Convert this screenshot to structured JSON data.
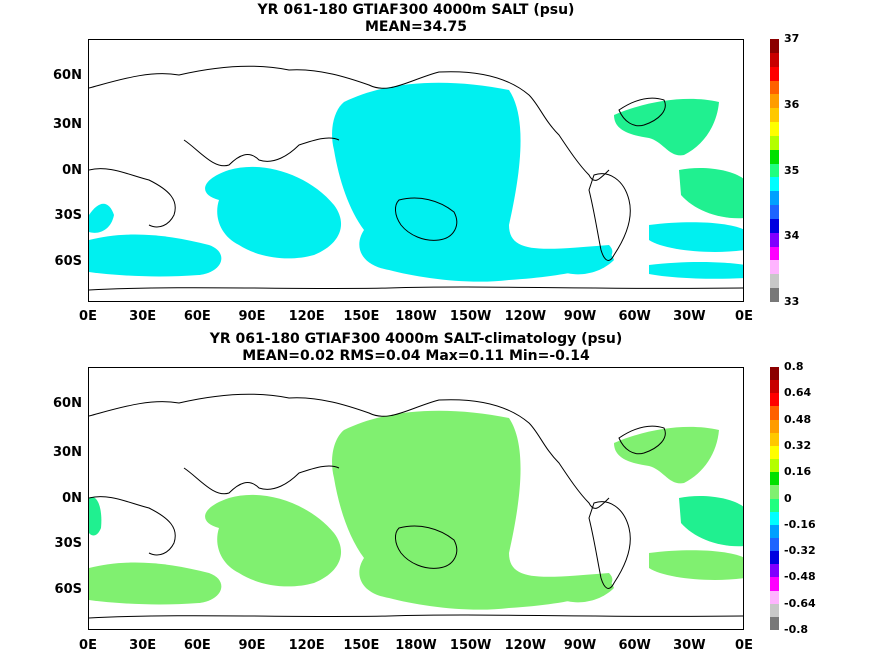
{
  "panel1": {
    "title_line1": "YR 061-180 GTIAF300 4000m SALT (psu)",
    "title_line2": "MEAN=34.75",
    "lat_labels": [
      "60N",
      "30N",
      "0N",
      "30S",
      "60S"
    ],
    "lon_labels": [
      "0E",
      "30E",
      "60E",
      "90E",
      "120E",
      "150E",
      "180W",
      "150W",
      "120W",
      "90W",
      "60W",
      "30W",
      "0E"
    ],
    "colorbar_labels": [
      "37",
      "36",
      "35",
      "34",
      "33"
    ],
    "colorbar_colors": [
      "#8b0000",
      "#c80000",
      "#ff0000",
      "#ff6000",
      "#ff9c00",
      "#ffc800",
      "#ffff00",
      "#b4ff00",
      "#00e000",
      "#20ff80",
      "#00ffff",
      "#00a0ff",
      "#1e64ff",
      "#0000e0",
      "#8000ff",
      "#ff00ff",
      "#ffb4ff",
      "#c8c8c8",
      "#787878"
    ],
    "fill_color": "#00f0f0",
    "alt_fill_color": "#20f090"
  },
  "panel2": {
    "title_line1": "YR 061-180 GTIAF300 4000m SALT-climatology (psu)",
    "title_line2": "MEAN=0.02   RMS=0.04   Max=0.11   Min=-0.14",
    "lat_labels": [
      "60N",
      "30N",
      "0N",
      "30S",
      "60S"
    ],
    "lon_labels": [
      "0E",
      "30E",
      "60E",
      "90E",
      "120E",
      "150E",
      "180W",
      "150W",
      "120W",
      "90W",
      "60W",
      "30W",
      "0E"
    ],
    "colorbar_labels": [
      "0.8",
      "0.64",
      "0.48",
      "0.32",
      "0.16",
      "0",
      "-0.16",
      "-0.32",
      "-0.48",
      "-0.64",
      "-0.8"
    ],
    "colorbar_colors": [
      "#8b0000",
      "#c80000",
      "#ff0000",
      "#ff6000",
      "#ff9c00",
      "#ffc800",
      "#ffff00",
      "#b4ff00",
      "#00e000",
      "#80f070",
      "#20ff80",
      "#00ffff",
      "#00a0ff",
      "#1e64ff",
      "#0000e0",
      "#8000ff",
      "#ff00ff",
      "#ffb4ff",
      "#c8c8c8",
      "#787878"
    ],
    "fill_color": "#80f070",
    "alt_fill_color": "#20f090"
  }
}
